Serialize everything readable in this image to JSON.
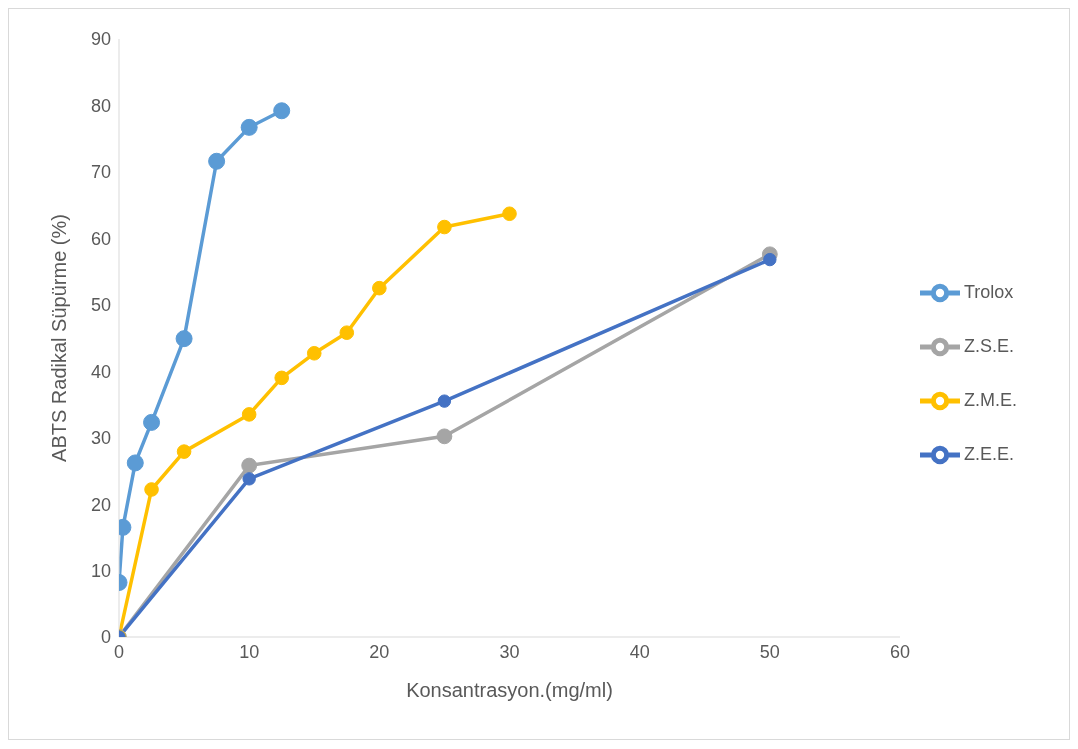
{
  "chart_data": {
    "type": "line",
    "xlabel": "Konsantrasyon.(mg/ml)",
    "ylabel": "ABTS Radikal Süpürme (%)",
    "xlim": [
      0,
      60
    ],
    "xticks": [
      0,
      10,
      20,
      30,
      40,
      50,
      60
    ],
    "ylim": [
      0,
      90
    ],
    "yticks": [
      0,
      10,
      20,
      30,
      40,
      50,
      60,
      70,
      80,
      90
    ],
    "grid": false,
    "legend": "right",
    "marker": "circle",
    "line_style": "solid",
    "series": [
      {
        "name": "Trolox",
        "color": "#5b9bd5",
        "x": [
          0,
          0.3,
          1.25,
          2.5,
          5,
          7.5,
          10,
          12.5
        ],
        "values": [
          8.2,
          16.5,
          26.2,
          32.3,
          44.9,
          71.6,
          76.7,
          79.2
        ]
      },
      {
        "name": "Z.S.E.",
        "color": "#a5a5a5",
        "x": [
          0,
          10,
          25,
          50
        ],
        "values": [
          0,
          25.8,
          30.2,
          57.6
        ]
      },
      {
        "name": "Z.M.E.",
        "color": "#ffc000",
        "x": [
          0,
          2.5,
          5,
          10,
          12.5,
          15,
          17.5,
          20,
          25,
          30
        ],
        "values": [
          0,
          22.2,
          27.9,
          33.5,
          39,
          42.7,
          45.8,
          52.5,
          61.7,
          63.7
        ]
      },
      {
        "name": "Z.E.E.",
        "color": "#4472c4",
        "x": [
          0,
          10,
          25,
          50
        ],
        "values": [
          0,
          23.8,
          35.5,
          56.8
        ]
      }
    ]
  }
}
